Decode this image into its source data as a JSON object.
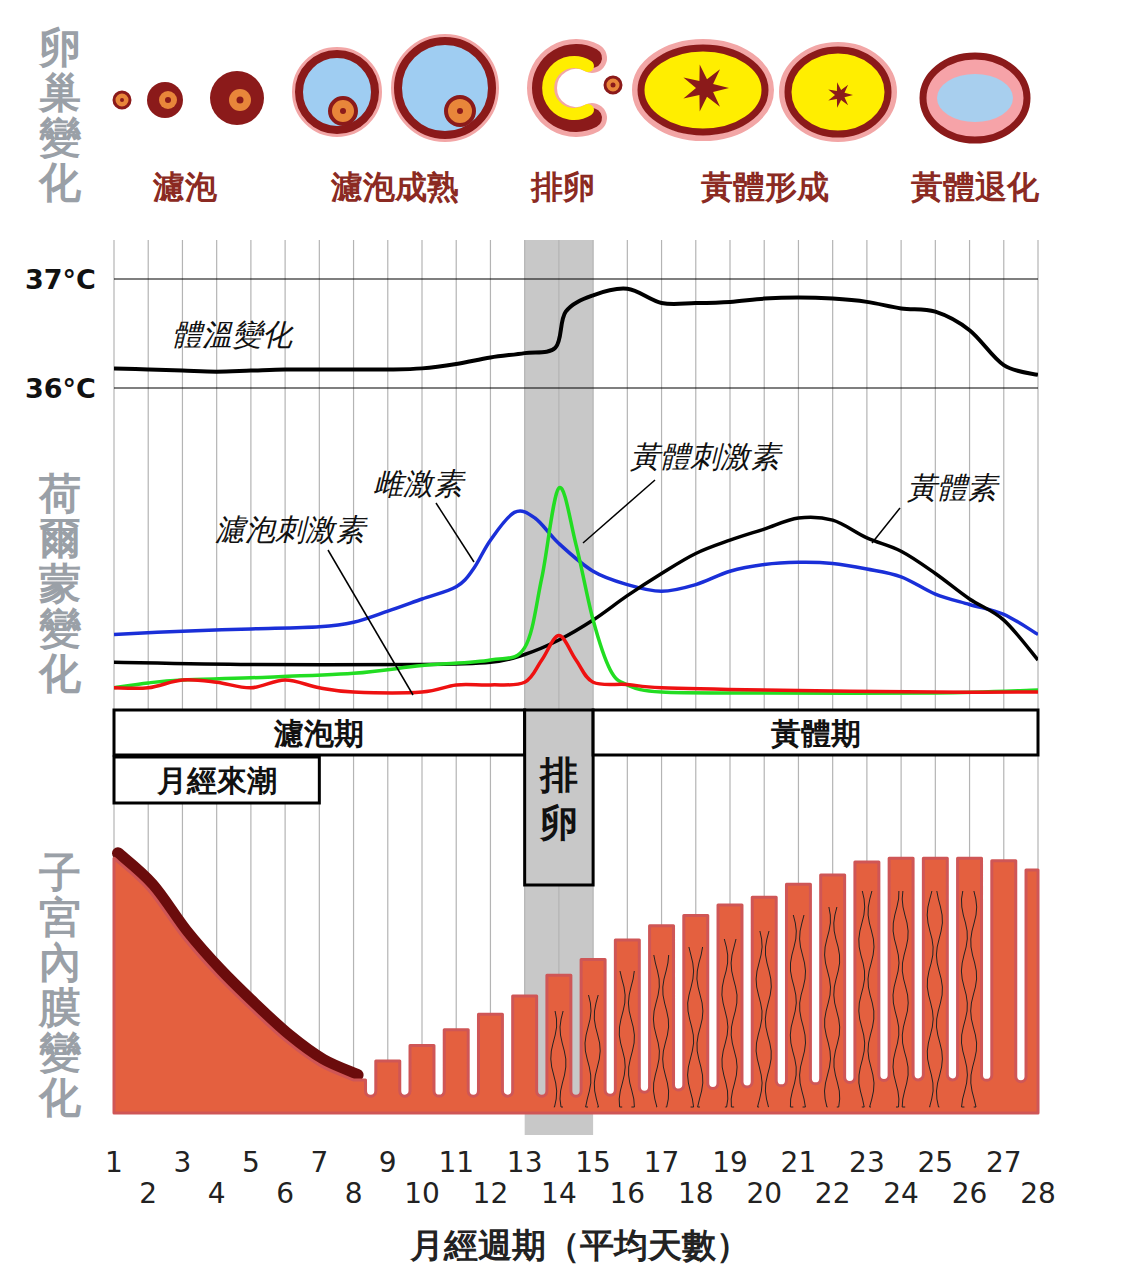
{
  "ovary": {
    "title": "卵巢變化",
    "stages": [
      "濾泡",
      "濾泡成熟",
      "排卵",
      "黃體形成",
      "黃體退化"
    ]
  },
  "x_axis": {
    "label": "月經週期（平均天數）",
    "xlim": [
      1,
      28
    ],
    "xticks": [
      1,
      2,
      3,
      4,
      5,
      6,
      7,
      8,
      9,
      10,
      11,
      12,
      13,
      14,
      15,
      16,
      17,
      18,
      19,
      20,
      21,
      22,
      23,
      24,
      25,
      26,
      27,
      28
    ],
    "grid": true
  },
  "chart_data": [
    {
      "type": "line",
      "title": "體溫變化",
      "ylim": [
        36,
        37
      ],
      "yticks": [
        {
          "value": 36,
          "label": "36°C"
        },
        {
          "value": 37,
          "label": "37°C"
        }
      ],
      "grid": true,
      "tick_labels": "y",
      "series": [
        {
          "color": "#000000",
          "x": [
            1,
            2,
            3,
            4,
            5,
            6,
            7,
            8,
            9,
            10,
            11,
            12,
            13,
            13.9,
            14.2,
            15,
            16,
            17,
            18,
            19,
            20,
            21,
            22,
            23,
            24,
            25,
            26,
            27,
            28
          ],
          "values": [
            36.18,
            36.17,
            36.16,
            36.15,
            36.16,
            36.17,
            36.17,
            36.17,
            36.17,
            36.18,
            36.22,
            36.28,
            36.32,
            36.37,
            36.7,
            36.85,
            36.91,
            36.78,
            36.78,
            36.79,
            36.82,
            36.83,
            36.82,
            36.79,
            36.73,
            36.7,
            36.53,
            36.21,
            36.12
          ]
        }
      ]
    },
    {
      "type": "line",
      "title": "荷爾蒙變化",
      "ylim": [
        0,
        100
      ],
      "tick_labels": false,
      "series": [
        {
          "name": "雌激素",
          "color": "#1a2fd8",
          "x": [
            1,
            3,
            5,
            7,
            8,
            9,
            10,
            11,
            11.5,
            12,
            12.7,
            13.3,
            14,
            15,
            16,
            17,
            18,
            19,
            20,
            21,
            22,
            23,
            24,
            25,
            26,
            27,
            28
          ],
          "values": [
            29.5,
            31,
            32,
            33,
            35,
            40,
            45.5,
            51,
            59,
            72,
            84.5,
            82,
            70.5,
            58,
            52,
            49,
            52,
            58,
            61,
            62,
            61.5,
            59,
            55.5,
            47.7,
            43,
            38.6,
            29.5
          ]
        },
        {
          "name": "黃體素",
          "color": "#000000",
          "x": [
            1,
            5,
            10,
            12,
            13,
            14,
            15,
            16,
            17,
            18,
            19,
            20,
            21,
            22,
            23,
            24,
            25,
            26,
            27,
            28
          ],
          "values": [
            17,
            16,
            16,
            17,
            20.5,
            27,
            36,
            47,
            57,
            66,
            72,
            77,
            82,
            81,
            73,
            67,
            57,
            45.5,
            36,
            18
          ]
        },
        {
          "name": "黃體刺激素",
          "color": "#22dd22",
          "x": [
            1,
            2,
            3,
            5,
            8,
            10,
            12,
            13,
            13.5,
            14,
            14.5,
            15,
            15.5,
            16,
            17,
            20,
            25,
            28
          ],
          "values": [
            5.5,
            7.7,
            9,
            10,
            12,
            15.5,
            18,
            23.6,
            55,
            95.5,
            70,
            36,
            13.6,
            6.8,
            3.6,
            3.2,
            3.2,
            4.5
          ]
        },
        {
          "name": "濾泡刺激素",
          "color": "#ee1111",
          "x": [
            1,
            2,
            3,
            4,
            5,
            6,
            7,
            8,
            10,
            11,
            12,
            13,
            13.5,
            14,
            14.5,
            15,
            16,
            17,
            20,
            25,
            28
          ],
          "values": [
            5.5,
            5.5,
            9,
            8,
            5.5,
            9,
            5.5,
            3.6,
            3.6,
            6.8,
            6.8,
            8,
            18,
            29,
            18,
            8,
            7,
            5.5,
            4.5,
            3.6,
            3.6
          ]
        }
      ]
    }
  ],
  "phases": [
    {
      "label": "濾泡期",
      "start": 1,
      "end": 13
    },
    {
      "label": "排卵",
      "start": 13,
      "end": 15
    },
    {
      "label": "黃體期",
      "start": 15,
      "end": 28
    },
    {
      "label": "月經來潮",
      "start": 1,
      "end": 7
    }
  ],
  "endometrium": {
    "title": "子宮內膜變化",
    "ylim": [
      0,
      100
    ],
    "x": [
      1,
      2,
      3,
      4,
      5,
      6,
      7,
      8,
      9,
      10,
      11,
      12,
      13,
      14,
      15,
      16,
      17,
      18,
      19,
      20,
      21,
      22,
      23,
      24,
      25,
      26,
      27,
      28
    ],
    "thickness": [
      98,
      86,
      68,
      53,
      40,
      28,
      18.5,
      12.7,
      20,
      26,
      32,
      38,
      45,
      53,
      59,
      66.5,
      72,
      76,
      80,
      83,
      88,
      91.5,
      96.5,
      98,
      98,
      98,
      97,
      93.5
    ]
  }
}
